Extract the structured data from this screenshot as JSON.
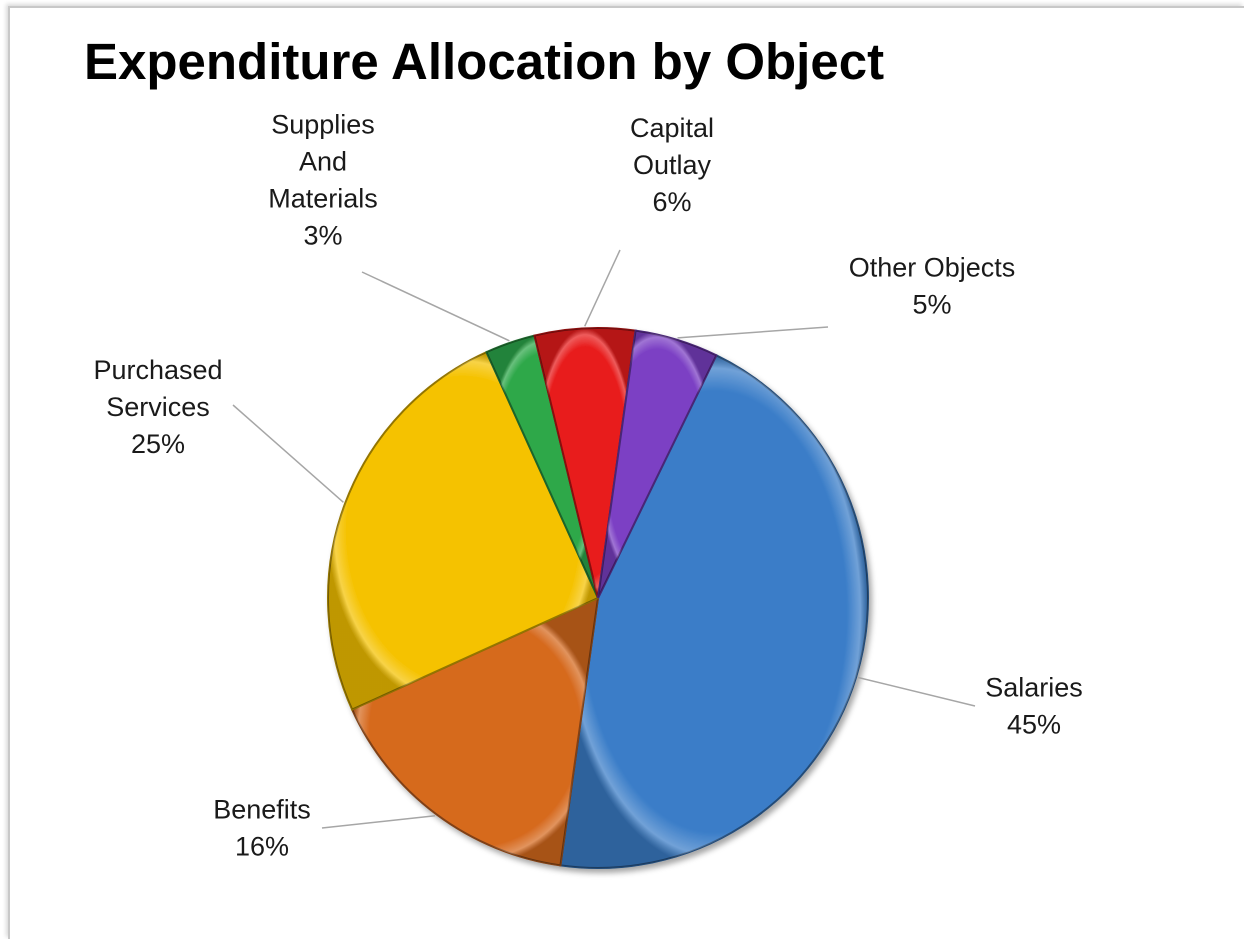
{
  "chart_data": {
    "type": "pie",
    "title": "Expenditure Allocation by Object",
    "slices": [
      {
        "name": "Salaries",
        "label_lines": [
          "Salaries"
        ],
        "value": 45,
        "value_label": "45%",
        "color": "#3a7dc8"
      },
      {
        "name": "Benefits",
        "label_lines": [
          "Benefits"
        ],
        "value": 16,
        "value_label": "16%",
        "color": "#d66a1f"
      },
      {
        "name": "Purchased Services",
        "label_lines": [
          "Purchased",
          "Services"
        ],
        "value": 25,
        "value_label": "25%",
        "color": "#f5c200"
      },
      {
        "name": "Supplies And Materials",
        "label_lines": [
          "Supplies",
          "And",
          "Materials"
        ],
        "value": 3,
        "value_label": "3%",
        "color": "#2ea84a"
      },
      {
        "name": "Capital Outlay",
        "label_lines": [
          "Capital",
          "Outlay"
        ],
        "value": 6,
        "value_label": "6%",
        "color": "#e81c1c"
      },
      {
        "name": "Other Objects",
        "label_lines": [
          "Other Objects"
        ],
        "value": 5,
        "value_label": "5%",
        "color": "#7b3fc4"
      }
    ]
  }
}
